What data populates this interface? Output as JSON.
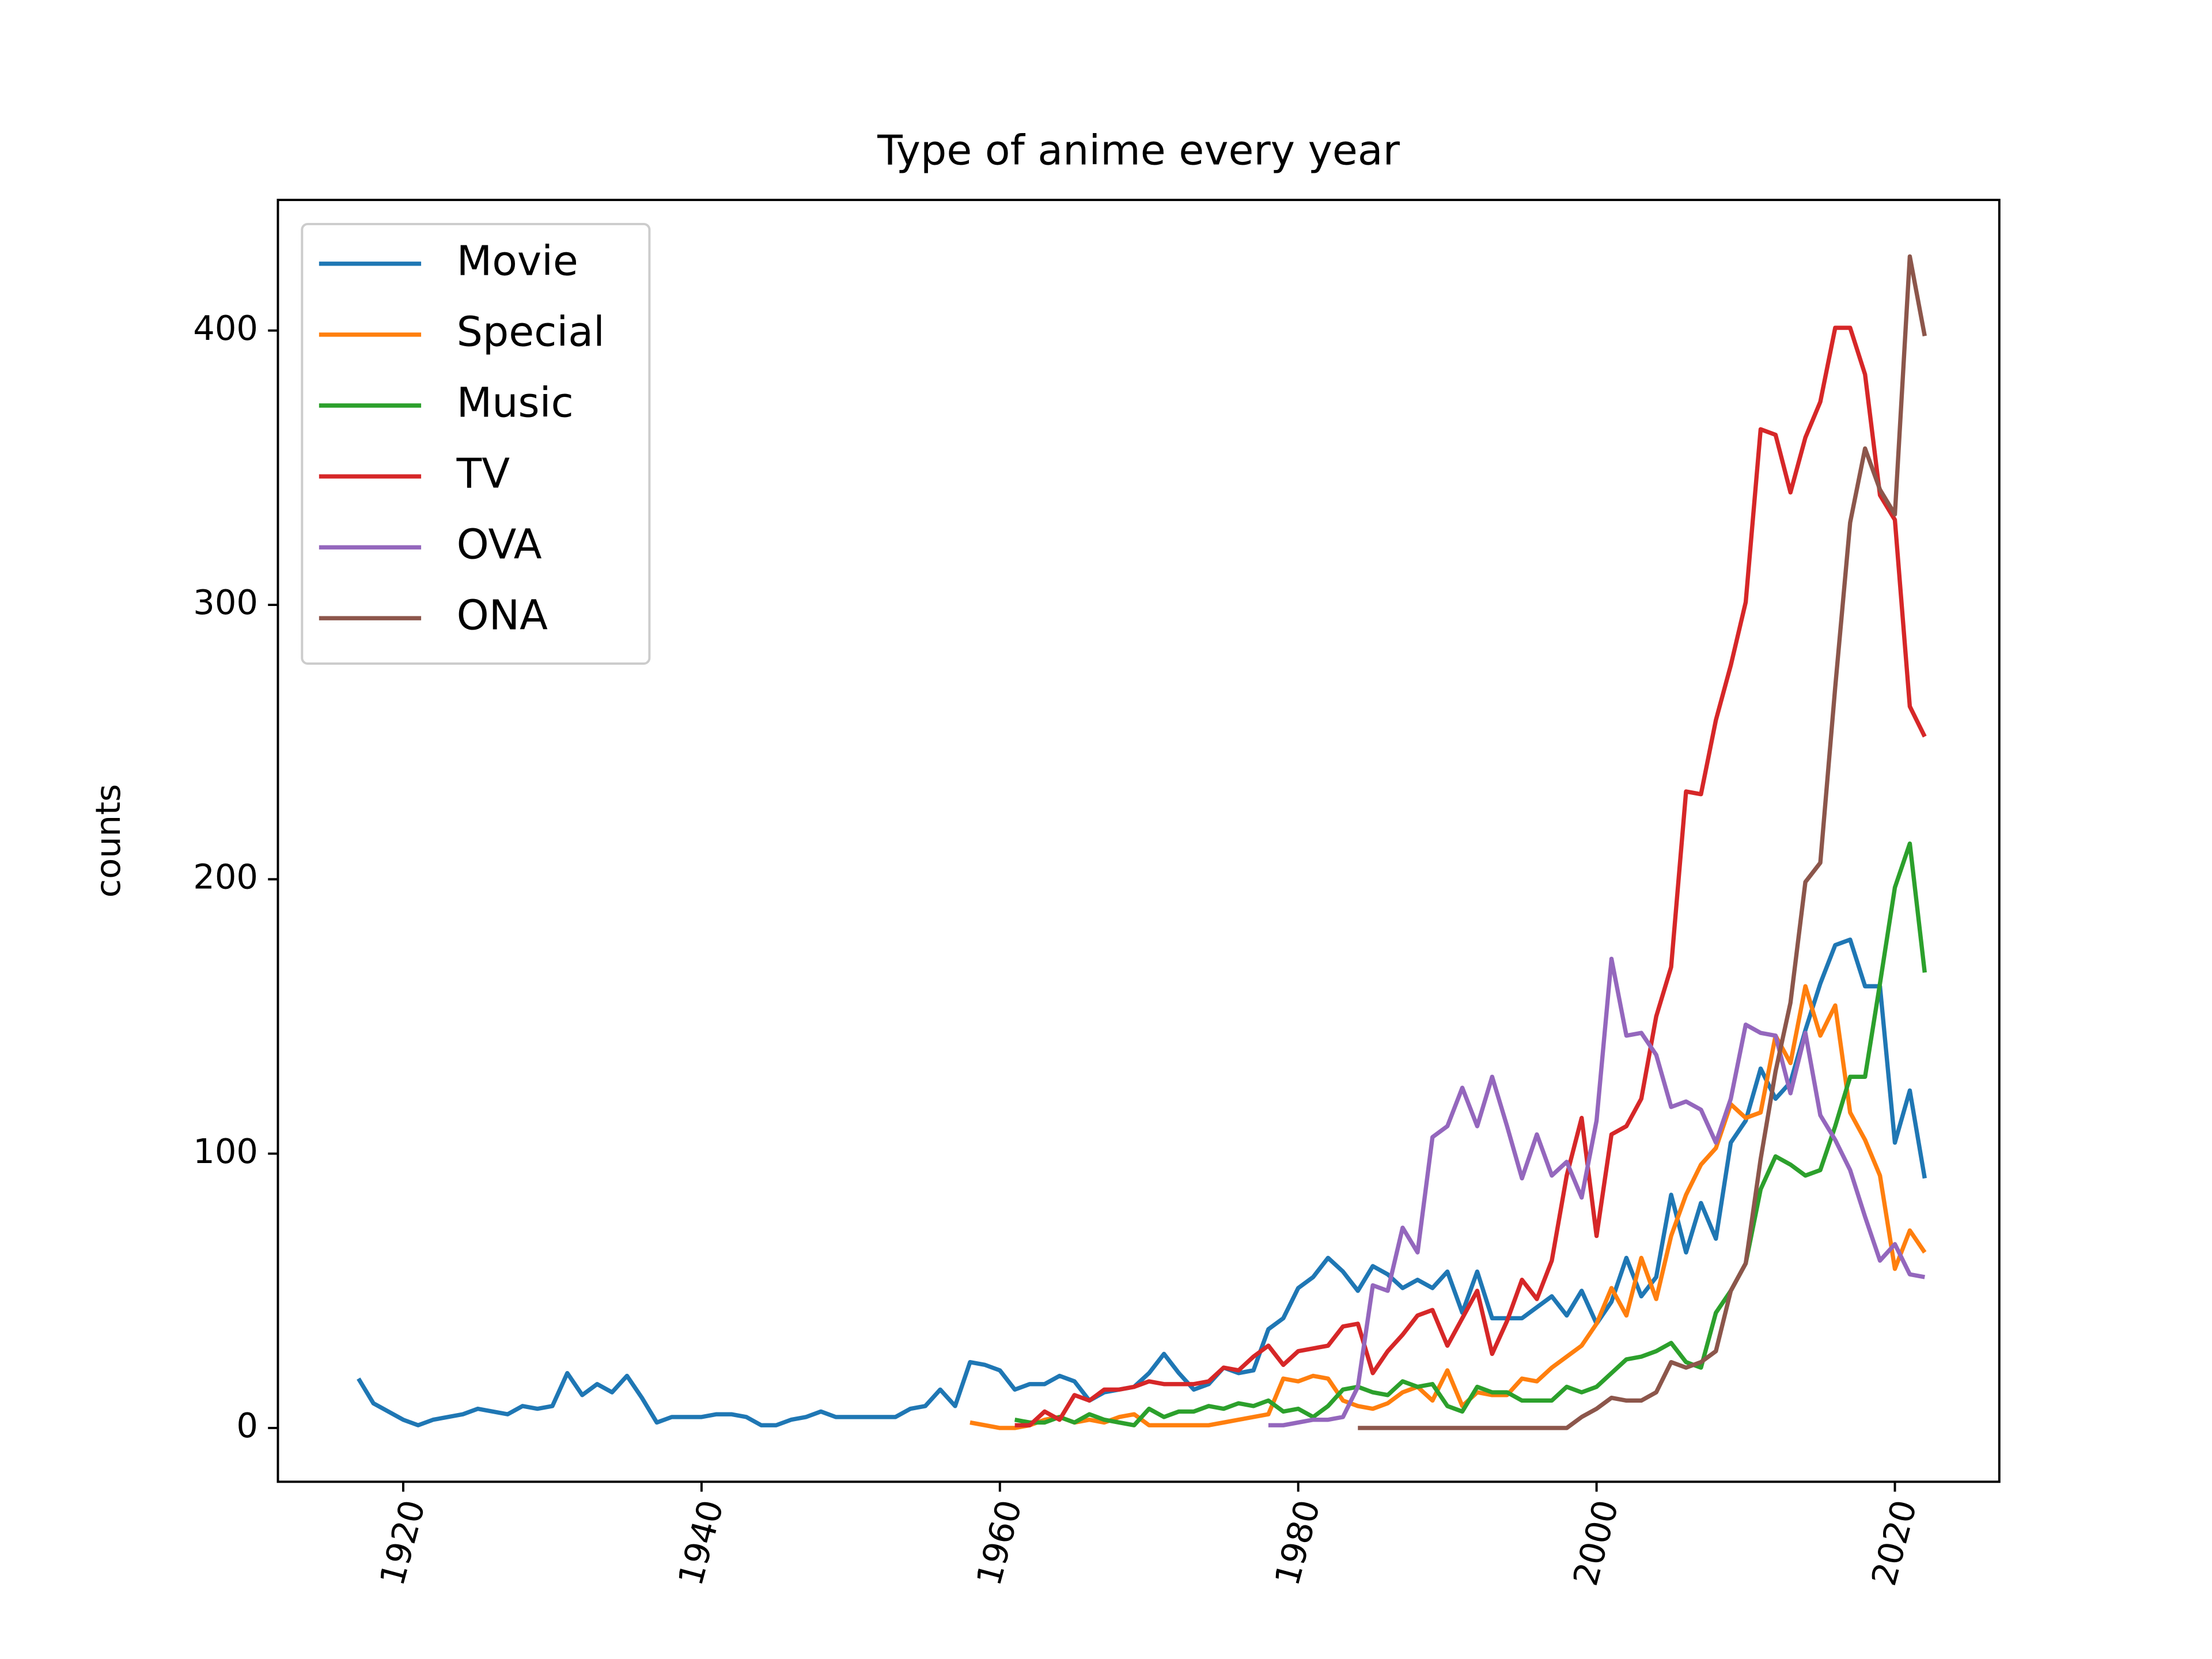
{
  "chart_data": {
    "type": "line",
    "title": "Type of anime every year",
    "y_label": "counts",
    "x": [
      1917,
      1918,
      1919,
      1920,
      1921,
      1922,
      1923,
      1924,
      1925,
      1926,
      1927,
      1928,
      1929,
      1930,
      1931,
      1932,
      1933,
      1934,
      1935,
      1936,
      1937,
      1938,
      1939,
      1940,
      1941,
      1942,
      1943,
      1944,
      1945,
      1946,
      1947,
      1948,
      1949,
      1950,
      1951,
      1952,
      1953,
      1954,
      1955,
      1956,
      1957,
      1958,
      1959,
      1960,
      1961,
      1962,
      1963,
      1964,
      1965,
      1966,
      1967,
      1968,
      1969,
      1970,
      1971,
      1972,
      1973,
      1974,
      1975,
      1976,
      1977,
      1978,
      1979,
      1980,
      1981,
      1982,
      1983,
      1984,
      1985,
      1986,
      1987,
      1988,
      1989,
      1990,
      1991,
      1992,
      1993,
      1994,
      1995,
      1996,
      1997,
      1998,
      1999,
      2000,
      2001,
      2002,
      2003,
      2004,
      2005,
      2006,
      2007,
      2008,
      2009,
      2010,
      2011,
      2012,
      2013,
      2014,
      2015,
      2016,
      2017,
      2018,
      2019,
      2020,
      2021,
      2022
    ],
    "series": [
      {
        "name": "Movie",
        "color": "#1f77b4",
        "values": [
          18,
          9,
          6,
          3,
          1,
          3,
          4,
          5,
          7,
          6,
          5,
          8,
          7,
          8,
          20,
          12,
          16,
          13,
          19,
          11,
          2,
          4,
          4,
          4,
          5,
          5,
          4,
          1,
          1,
          3,
          4,
          6,
          4,
          4,
          4,
          4,
          4,
          7,
          8,
          14,
          8,
          24,
          23,
          21,
          14,
          16,
          16,
          19,
          17,
          10,
          13,
          14,
          15,
          20,
          27,
          20,
          14,
          16,
          22,
          20,
          21,
          36,
          40,
          51,
          55,
          62,
          57,
          50,
          59,
          56,
          51,
          54,
          51,
          57,
          42,
          57,
          40,
          40,
          40,
          44,
          48,
          41,
          50,
          38,
          46,
          62,
          48,
          55,
          85,
          64,
          82,
          69,
          104,
          112,
          131,
          120,
          126,
          145,
          162,
          176,
          178,
          161,
          161,
          104,
          123,
          91
        ]
      },
      {
        "name": "Special",
        "color": "#ff7f0e",
        "values": [
          null,
          null,
          null,
          null,
          null,
          null,
          null,
          null,
          null,
          null,
          null,
          null,
          null,
          null,
          null,
          null,
          null,
          null,
          null,
          null,
          null,
          null,
          null,
          null,
          null,
          null,
          null,
          null,
          null,
          null,
          null,
          null,
          null,
          null,
          null,
          null,
          null,
          null,
          null,
          null,
          null,
          2,
          1,
          0,
          0,
          1,
          3,
          4,
          2,
          3,
          2,
          4,
          5,
          1,
          1,
          1,
          1,
          1,
          2,
          3,
          4,
          5,
          18,
          17,
          19,
          18,
          10,
          8,
          7,
          9,
          13,
          15,
          10,
          21,
          8,
          13,
          12,
          12,
          18,
          17,
          22,
          26,
          30,
          38,
          51,
          41,
          62,
          47,
          70,
          85,
          96,
          102,
          118,
          113,
          115,
          143,
          133,
          161,
          143,
          154,
          115,
          105,
          92,
          58,
          72,
          64
        ]
      },
      {
        "name": "Music",
        "color": "#2ca02c",
        "values": [
          null,
          null,
          null,
          null,
          null,
          null,
          null,
          null,
          null,
          null,
          null,
          null,
          null,
          null,
          null,
          null,
          null,
          null,
          null,
          null,
          null,
          null,
          null,
          null,
          null,
          null,
          null,
          null,
          null,
          null,
          null,
          null,
          null,
          null,
          null,
          null,
          null,
          null,
          null,
          null,
          null,
          null,
          null,
          null,
          3,
          2,
          2,
          4,
          2,
          5,
          3,
          2,
          1,
          7,
          4,
          6,
          6,
          8,
          7,
          9,
          8,
          10,
          6,
          7,
          4,
          8,
          14,
          15,
          13,
          12,
          17,
          15,
          16,
          8,
          6,
          15,
          13,
          13,
          10,
          10,
          10,
          15,
          13,
          15,
          20,
          25,
          26,
          28,
          31,
          24,
          22,
          42,
          50,
          60,
          87,
          99,
          96,
          92,
          94,
          110,
          128,
          128,
          162,
          197,
          213,
          166
        ]
      },
      {
        "name": "TV",
        "color": "#d62728",
        "values": [
          null,
          null,
          null,
          null,
          null,
          null,
          null,
          null,
          null,
          null,
          null,
          null,
          null,
          null,
          null,
          null,
          null,
          null,
          null,
          null,
          null,
          null,
          null,
          null,
          null,
          null,
          null,
          null,
          null,
          null,
          null,
          null,
          null,
          null,
          null,
          null,
          null,
          null,
          null,
          null,
          null,
          null,
          null,
          null,
          1,
          1,
          6,
          3,
          12,
          10,
          14,
          14,
          15,
          17,
          16,
          16,
          16,
          17,
          22,
          21,
          26,
          30,
          23,
          28,
          29,
          30,
          37,
          38,
          20,
          28,
          34,
          41,
          43,
          30,
          40,
          50,
          27,
          39,
          54,
          47,
          61,
          92,
          113,
          70,
          107,
          110,
          120,
          150,
          168,
          232,
          231,
          258,
          278,
          301,
          364,
          362,
          341,
          361,
          374,
          401,
          401,
          384,
          340,
          331,
          263,
          252
        ]
      },
      {
        "name": "OVA",
        "color": "#9467bd",
        "values": [
          null,
          null,
          null,
          null,
          null,
          null,
          null,
          null,
          null,
          null,
          null,
          null,
          null,
          null,
          null,
          null,
          null,
          null,
          null,
          null,
          null,
          null,
          null,
          null,
          null,
          null,
          null,
          null,
          null,
          null,
          null,
          null,
          null,
          null,
          null,
          null,
          null,
          null,
          null,
          null,
          null,
          null,
          null,
          null,
          null,
          null,
          null,
          null,
          null,
          null,
          null,
          null,
          null,
          null,
          null,
          null,
          null,
          null,
          null,
          null,
          null,
          1,
          1,
          2,
          3,
          3,
          4,
          15,
          52,
          50,
          73,
          64,
          106,
          110,
          124,
          110,
          128,
          110,
          91,
          107,
          92,
          97,
          84,
          112,
          171,
          143,
          144,
          136,
          117,
          119,
          116,
          104,
          120,
          147,
          144,
          143,
          122,
          144,
          114,
          105,
          94,
          77,
          61,
          67,
          56,
          55
        ]
      },
      {
        "name": "ONA",
        "color": "#8c564b",
        "values": [
          null,
          null,
          null,
          null,
          null,
          null,
          null,
          null,
          null,
          null,
          null,
          null,
          null,
          null,
          null,
          null,
          null,
          null,
          null,
          null,
          null,
          null,
          null,
          null,
          null,
          null,
          null,
          null,
          null,
          null,
          null,
          null,
          null,
          null,
          null,
          null,
          null,
          null,
          null,
          null,
          null,
          null,
          null,
          null,
          null,
          null,
          null,
          null,
          null,
          null,
          null,
          null,
          null,
          null,
          null,
          null,
          null,
          null,
          null,
          null,
          null,
          null,
          null,
          null,
          null,
          null,
          null,
          0,
          0,
          0,
          0,
          0,
          0,
          0,
          0,
          0,
          0,
          0,
          0,
          0,
          0,
          0,
          4,
          7,
          11,
          10,
          10,
          13,
          24,
          22,
          24,
          28,
          50,
          60,
          98,
          130,
          155,
          199,
          206,
          270,
          330,
          357,
          342,
          333,
          427,
          398
        ]
      }
    ],
    "xlim": [
      1911.6,
      2027.0
    ],
    "xticks": [
      1920,
      1940,
      1960,
      1980,
      2000,
      2020
    ],
    "ylim": [
      -19.6,
      447.6
    ],
    "yticks": [
      0,
      100,
      200,
      300,
      400
    ],
    "legend": "upper left"
  }
}
